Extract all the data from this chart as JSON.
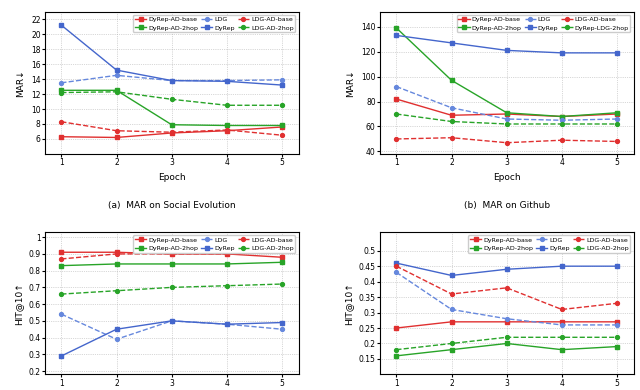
{
  "epochs": [
    1,
    2,
    3,
    4,
    5
  ],
  "subplot_a": {
    "title": "(a)  MAR on Social Evolution",
    "ylabel": "MAR↓",
    "ylim": [
      4,
      23
    ],
    "yticks": [
      6,
      8,
      10,
      12,
      14,
      16,
      18,
      20,
      22
    ],
    "series": {
      "DyRep-AD-base": {
        "color": "#e03030",
        "linestyle": "-",
        "marker": "s",
        "dashed": false,
        "data": [
          6.3,
          6.2,
          6.8,
          7.1,
          7.6
        ]
      },
      "DyRep-AD-2hop": {
        "color": "#28a428",
        "linestyle": "-",
        "marker": "s",
        "dashed": false,
        "data": [
          12.5,
          12.5,
          7.9,
          7.8,
          7.8
        ]
      },
      "LDG": {
        "color": "#6688dd",
        "linestyle": "--",
        "marker": "o",
        "dashed": true,
        "data": [
          13.5,
          14.5,
          13.8,
          13.8,
          13.9
        ]
      },
      "DyRep": {
        "color": "#4466cc",
        "linestyle": "-",
        "marker": "s",
        "dashed": false,
        "data": [
          21.2,
          15.2,
          13.8,
          13.7,
          13.2
        ]
      },
      "LDG-AD-base": {
        "color": "#e03030",
        "linestyle": "--",
        "marker": "o",
        "dashed": true,
        "data": [
          8.3,
          7.1,
          6.9,
          7.2,
          6.5
        ]
      },
      "LDG-AD-2hop": {
        "color": "#28a428",
        "linestyle": "--",
        "marker": "o",
        "dashed": true,
        "data": [
          12.2,
          12.3,
          11.3,
          10.5,
          10.5
        ]
      }
    },
    "legend_order": [
      "DyRep-AD-base",
      "DyRep-AD-2hop",
      "LDG",
      "DyRep",
      "LDG-AD-base",
      "LDG-AD-2hop"
    ]
  },
  "subplot_b": {
    "title": "(b)  MAR on Github",
    "ylabel": "MAR↓",
    "ylim": [
      38,
      152
    ],
    "yticks": [
      40,
      60,
      80,
      100,
      120,
      140
    ],
    "series": {
      "DyRep-AD-base": {
        "color": "#e03030",
        "linestyle": "-",
        "marker": "s",
        "dashed": false,
        "data": [
          82,
          69,
          70,
          68,
          70
        ]
      },
      "DyRep-AD-2hop": {
        "color": "#28a428",
        "linestyle": "-",
        "marker": "s",
        "dashed": false,
        "data": [
          139,
          97,
          71,
          68,
          71
        ]
      },
      "LDG": {
        "color": "#6688dd",
        "linestyle": "--",
        "marker": "o",
        "dashed": true,
        "data": [
          92,
          75,
          66,
          65,
          66
        ]
      },
      "DyRep": {
        "color": "#4466cc",
        "linestyle": "-",
        "marker": "s",
        "dashed": false,
        "data": [
          133,
          127,
          121,
          119,
          119
        ]
      },
      "LDG-AD-base": {
        "color": "#e03030",
        "linestyle": "--",
        "marker": "o",
        "dashed": true,
        "data": [
          50,
          51,
          47,
          49,
          48
        ]
      },
      "DyRep-LDG-2hop": {
        "color": "#28a428",
        "linestyle": "--",
        "marker": "o",
        "dashed": true,
        "data": [
          70,
          64,
          62,
          62,
          62
        ]
      }
    },
    "legend_order": [
      "DyRep-AD-base",
      "DyRep-AD-2hop",
      "LDG",
      "DyRep",
      "LDG-AD-base",
      "DyRep-LDG-2hop"
    ]
  },
  "subplot_c": {
    "title": "(c)  HIT@10 on Social Evolution",
    "ylabel": "HIT@10↑",
    "ylim": [
      0.18,
      1.03
    ],
    "yticks": [
      0.2,
      0.3,
      0.4,
      0.5,
      0.6,
      0.7,
      0.8,
      0.9,
      1.0
    ],
    "series": {
      "DyRep-AD-base": {
        "color": "#e03030",
        "linestyle": "-",
        "marker": "s",
        "dashed": false,
        "data": [
          0.91,
          0.91,
          0.9,
          0.9,
          0.88
        ]
      },
      "DyRep-AD-2hop": {
        "color": "#28a428",
        "linestyle": "-",
        "marker": "s",
        "dashed": false,
        "data": [
          0.83,
          0.84,
          0.84,
          0.84,
          0.85
        ]
      },
      "LDG": {
        "color": "#6688dd",
        "linestyle": "--",
        "marker": "o",
        "dashed": true,
        "data": [
          0.54,
          0.39,
          0.5,
          0.48,
          0.45
        ]
      },
      "DyRep": {
        "color": "#4466cc",
        "linestyle": "-",
        "marker": "s",
        "dashed": false,
        "data": [
          0.29,
          0.45,
          0.5,
          0.48,
          0.49
        ]
      },
      "LDG-AD-base": {
        "color": "#e03030",
        "linestyle": "--",
        "marker": "o",
        "dashed": true,
        "data": [
          0.87,
          0.9,
          0.9,
          0.9,
          0.92
        ]
      },
      "LDG-AD-2hop": {
        "color": "#28a428",
        "linestyle": "--",
        "marker": "o",
        "dashed": true,
        "data": [
          0.66,
          0.68,
          0.7,
          0.71,
          0.72
        ]
      }
    },
    "legend_order": [
      "DyRep-AD-base",
      "DyRep-AD-2hop",
      "LDG",
      "DyRep",
      "LDG-AD-base",
      "LDG-AD-2hop"
    ]
  },
  "subplot_d": {
    "title": "(d)  HIT@10 on Github",
    "ylabel": "HIT@10↑",
    "ylim": [
      0.1,
      0.56
    ],
    "yticks": [
      0.15,
      0.2,
      0.25,
      0.3,
      0.35,
      0.4,
      0.45,
      0.5
    ],
    "series": {
      "DyRep-AD-base": {
        "color": "#e03030",
        "linestyle": "-",
        "marker": "s",
        "dashed": false,
        "data": [
          0.25,
          0.27,
          0.27,
          0.27,
          0.27
        ]
      },
      "DyRep-AD-2hop": {
        "color": "#28a428",
        "linestyle": "-",
        "marker": "s",
        "dashed": false,
        "data": [
          0.16,
          0.18,
          0.2,
          0.18,
          0.19
        ]
      },
      "LDG": {
        "color": "#6688dd",
        "linestyle": "--",
        "marker": "o",
        "dashed": true,
        "data": [
          0.43,
          0.31,
          0.28,
          0.26,
          0.26
        ]
      },
      "DyRep": {
        "color": "#4466cc",
        "linestyle": "-",
        "marker": "s",
        "dashed": false,
        "data": [
          0.46,
          0.42,
          0.44,
          0.45,
          0.45
        ]
      },
      "LDG-AD-base": {
        "color": "#e03030",
        "linestyle": "--",
        "marker": "o",
        "dashed": true,
        "data": [
          0.45,
          0.36,
          0.38,
          0.31,
          0.33
        ]
      },
      "LDG-AD-2hop": {
        "color": "#28a428",
        "linestyle": "--",
        "marker": "o",
        "dashed": true,
        "data": [
          0.18,
          0.2,
          0.22,
          0.22,
          0.22
        ]
      }
    },
    "legend_order": [
      "DyRep-AD-base",
      "DyRep-AD-2hop",
      "LDG",
      "DyRep",
      "LDG-AD-base",
      "LDG-AD-2hop"
    ]
  }
}
